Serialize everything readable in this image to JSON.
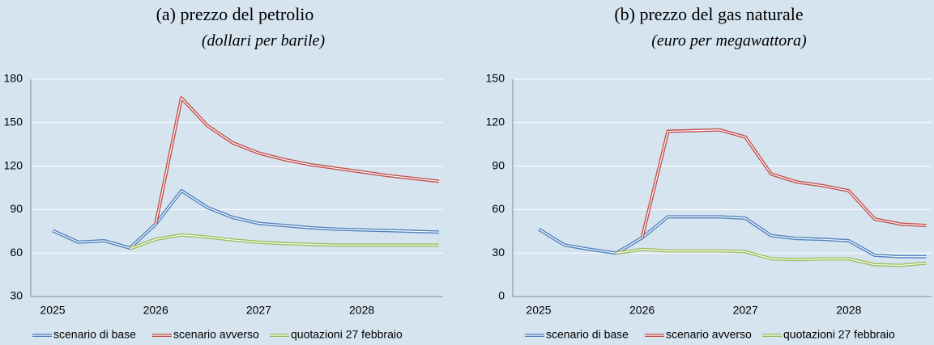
{
  "chart_data": [
    {
      "type": "line",
      "title": "(a) prezzo del petrolio",
      "subtitle": "(dollari per barile)",
      "categories": [
        "2025",
        null,
        null,
        null,
        "2026",
        null,
        null,
        null,
        "2027",
        null,
        null,
        null,
        "2028",
        null,
        null,
        null
      ],
      "series": [
        {
          "name": "scenario di base",
          "color": "#4f81bd",
          "values": [
            75.5,
            67.5,
            68.5,
            63.5,
            80,
            103,
            91.5,
            84.5,
            80.5,
            79,
            77.5,
            76.5,
            76,
            75.5,
            75,
            74.5
          ]
        },
        {
          "name": "scenario avverso",
          "color": "#c0504d",
          "values": [
            null,
            null,
            null,
            null,
            80,
            167,
            148,
            136,
            129,
            124.5,
            121,
            118.5,
            116,
            113.5,
            111.5,
            109.5
          ]
        },
        {
          "name": "quotazioni 27 febbraio",
          "color": "#9bbb59",
          "values": [
            null,
            null,
            null,
            63,
            69.5,
            72.5,
            71,
            69,
            67.5,
            66.5,
            66,
            65.5,
            65.5,
            65.5,
            65.5,
            65.5
          ]
        }
      ],
      "ylim": [
        30,
        180
      ],
      "yticks": [
        30,
        60,
        90,
        120,
        150,
        180
      ],
      "grid": true,
      "legend": "bottom"
    },
    {
      "type": "line",
      "title": "(b) prezzo del gas naturale",
      "subtitle": "(euro per megawattora)",
      "categories": [
        "2025",
        null,
        null,
        null,
        "2026",
        null,
        null,
        null,
        "2027",
        null,
        null,
        null,
        "2028",
        null,
        null,
        null
      ],
      "series": [
        {
          "name": "scenario di base",
          "color": "#4f81bd",
          "values": [
            46.5,
            35.5,
            32.5,
            30,
            40.5,
            55,
            55,
            55,
            54,
            42,
            40,
            39.5,
            38.5,
            28.5,
            27.5,
            27.5
          ]
        },
        {
          "name": "scenario avverso",
          "color": "#c0504d",
          "values": [
            null,
            null,
            null,
            null,
            40.5,
            114,
            114.5,
            115,
            110,
            84.5,
            79,
            76.5,
            73,
            53.5,
            50,
            49
          ]
        },
        {
          "name": "quotazioni 27 febbraio",
          "color": "#9bbb59",
          "values": [
            null,
            null,
            null,
            30,
            32.5,
            31.5,
            31.5,
            31.5,
            31,
            26,
            25.5,
            26,
            26,
            22,
            21.5,
            23
          ]
        }
      ],
      "ylim": [
        0,
        150
      ],
      "yticks": [
        0,
        30,
        60,
        90,
        120,
        150
      ],
      "grid": true,
      "legend": "bottom"
    }
  ]
}
